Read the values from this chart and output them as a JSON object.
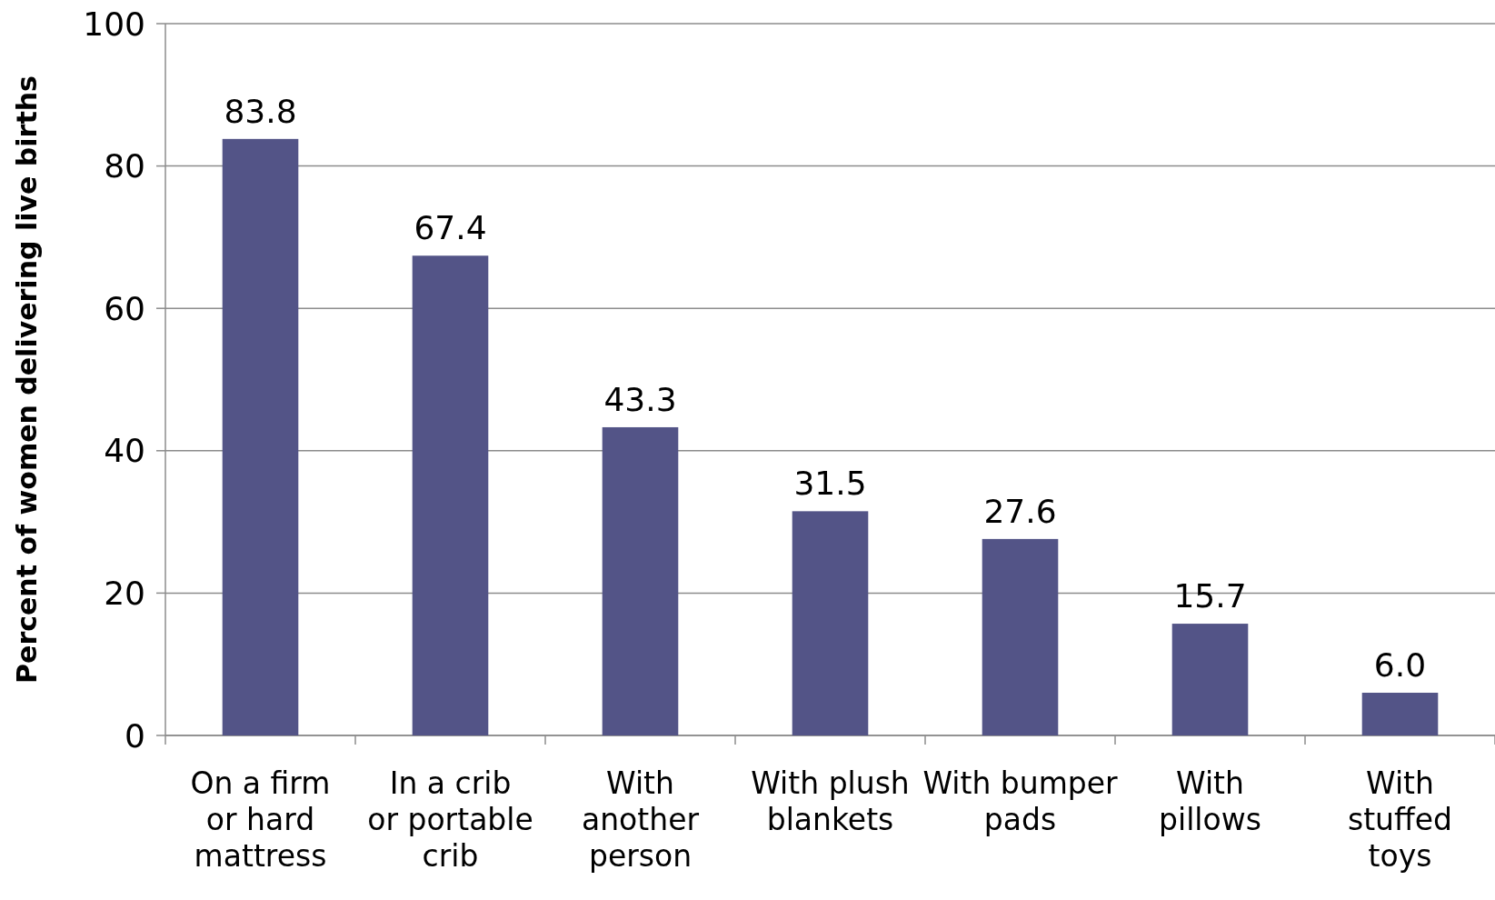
{
  "chart_data": {
    "type": "bar",
    "ylabel": "Percent of women delivering live births",
    "categories": [
      "On a firm or hard mattress",
      "In a crib or portable crib",
      "With another person",
      "With plush blankets",
      "With bumper pads",
      "With pillows",
      "With stuffed toys"
    ],
    "values": [
      83.8,
      67.4,
      43.3,
      31.5,
      27.6,
      15.7,
      6.0
    ],
    "value_labels": [
      "83.8",
      "67.4",
      "43.3",
      "31.5",
      "27.6",
      "15.7",
      "6.0"
    ],
    "color": "#535487",
    "ylim": [
      0,
      100
    ],
    "yticks": [
      0,
      20,
      40,
      60,
      80,
      100
    ],
    "grid": "y"
  }
}
